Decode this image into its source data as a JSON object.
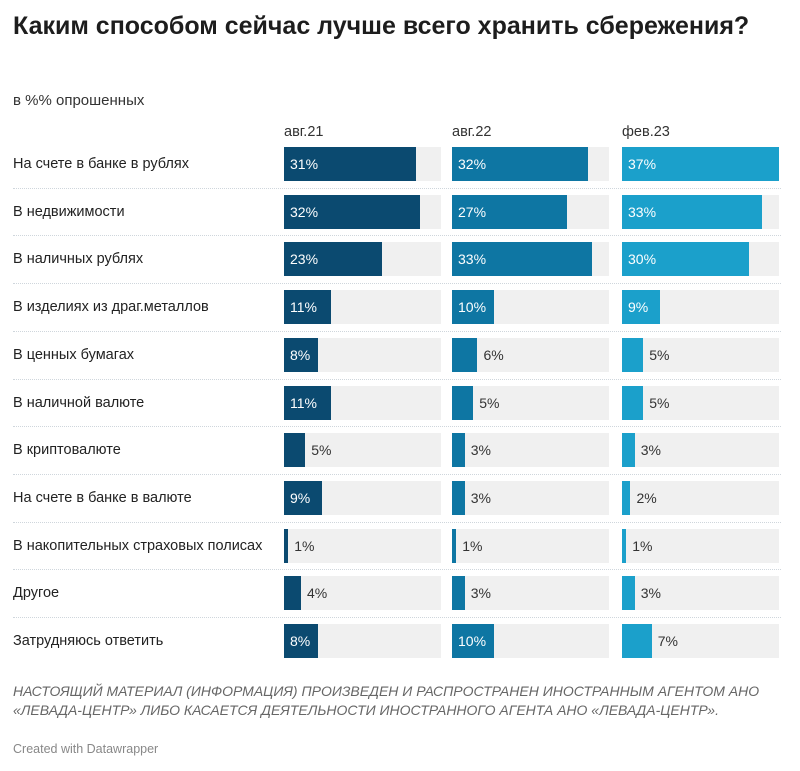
{
  "title": "Каким способом сейчас лучше всего хранить сбережения?",
  "subtitle": "в %% опрошенных",
  "chart_data": {
    "type": "bar",
    "layout": "small-multiples horizontal bars",
    "categories": [
      "На счете в банке в рублях",
      "В недвижимости",
      "В наличных рублях",
      "В изделиях из драг.металлов",
      "В ценных бумагах",
      "В наличной валюте",
      "В криптовалюте",
      "На счете в банке в валюте",
      "В накопительных страховых полисах",
      "Другое",
      "Затрудняюсь ответить"
    ],
    "series": [
      {
        "name": "авг.21",
        "color": "#0b4a70",
        "values": [
          31,
          32,
          23,
          11,
          8,
          11,
          5,
          9,
          1,
          4,
          8
        ]
      },
      {
        "name": "авг.22",
        "color": "#0e76a3",
        "values": [
          32,
          27,
          33,
          10,
          6,
          5,
          3,
          3,
          1,
          3,
          10
        ]
      },
      {
        "name": "фев.23",
        "color": "#1ba0cb",
        "values": [
          37,
          33,
          30,
          9,
          5,
          5,
          3,
          2,
          1,
          3,
          7
        ]
      }
    ],
    "value_suffix": "%",
    "xlim": [
      0,
      37
    ],
    "track_color": "#f0f0f0"
  },
  "note": "НАСТОЯЩИЙ МАТЕРИАЛ (ИНФОРМАЦИЯ) ПРОИЗВЕДЕН И РАСПРОСТРАНЕН ИНОСТРАННЫМ АГЕНТОМ АНО «ЛЕВАДА-ЦЕНТР» ЛИБО КАСАЕТСЯ ДЕЯТЕЛЬНОСТИ ИНОСТРАННОГО АГЕНТА АНО «ЛЕВАДА-ЦЕНТР».",
  "credit": "Created with Datawrapper"
}
